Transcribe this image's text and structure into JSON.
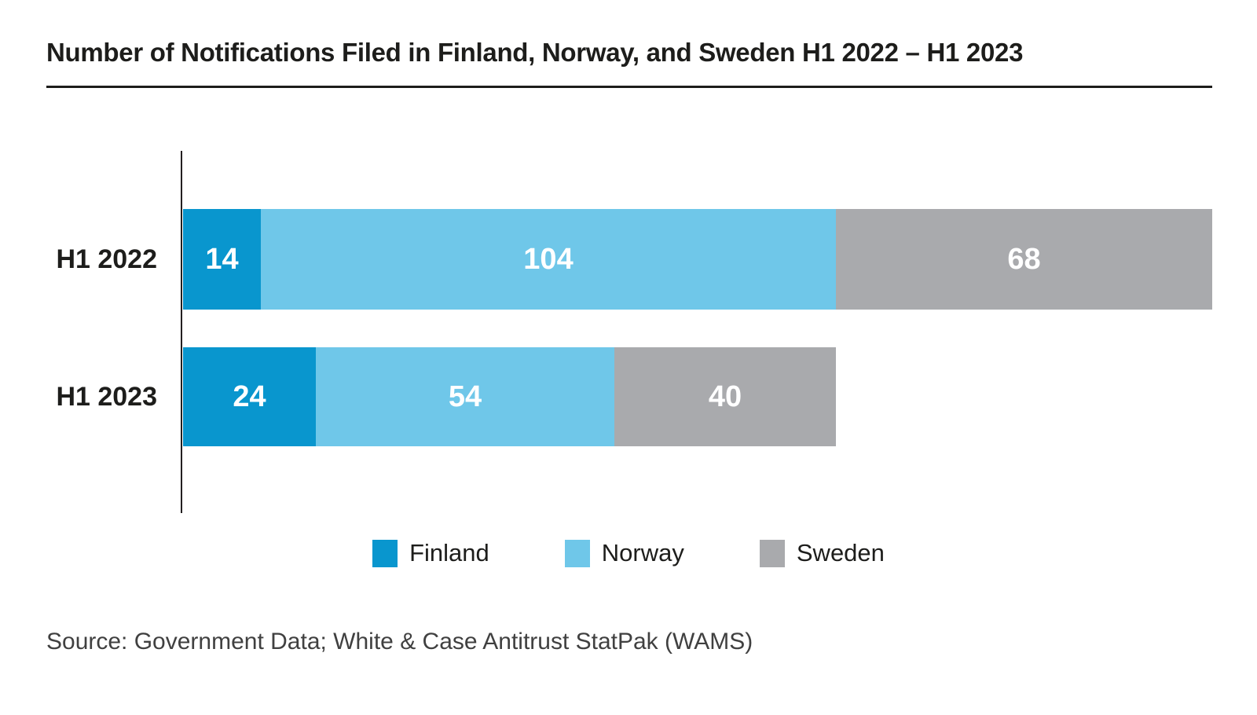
{
  "page": {
    "title": "Number of Notifications Filed in Finland, Norway, and Sweden H1 2022 – H1 2023",
    "source": "Source: Government Data; White & Case Antitrust StatPak (WAMS)"
  },
  "colors": {
    "finland": "#0996CE",
    "norway": "#6FC7E9",
    "sweden": "#A9AAAD",
    "axis_line": "#231F20",
    "heading_text": "#1D1D1B",
    "bar_value_text": "#FFFFFF",
    "source_text": "#404040"
  },
  "chart_data": {
    "type": "bar",
    "orientation": "horizontal",
    "stacked": true,
    "title": "Number of Notifications Filed in Finland, Norway, and Sweden H1 2022 – H1 2023",
    "categories": [
      "H1 2022",
      "H1 2023"
    ],
    "series": [
      {
        "name": "Finland",
        "color_key": "finland",
        "values": [
          14,
          24
        ]
      },
      {
        "name": "Norway",
        "color_key": "norway",
        "values": [
          104,
          54
        ]
      },
      {
        "name": "Sweden",
        "color_key": "sweden",
        "values": [
          68,
          40
        ]
      }
    ],
    "stack_totals": [
      186,
      118
    ],
    "value_labels": "inside-center-white-bold",
    "legend_position": "bottom-center",
    "gridlines": false,
    "x_axis_visible": false,
    "y_axis_baseline_visible": true
  },
  "legend": {
    "items": [
      {
        "label": "Finland",
        "color_key": "finland"
      },
      {
        "label": "Norway",
        "color_key": "norway"
      },
      {
        "label": "Sweden",
        "color_key": "sweden"
      }
    ]
  }
}
